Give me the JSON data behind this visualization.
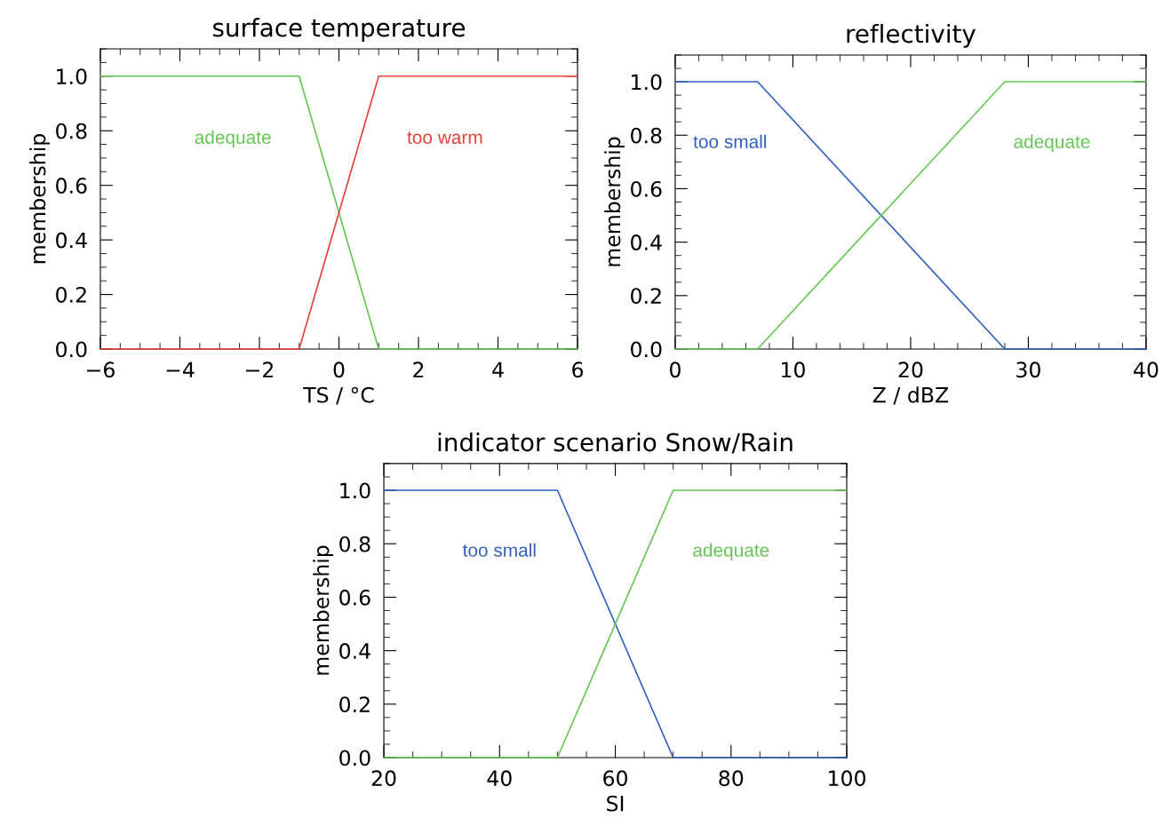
{
  "chart_data": [
    {
      "type": "line",
      "title": "surface temperature",
      "xlabel": "TS / °C",
      "ylabel": "membership",
      "xlim": [
        -6,
        6
      ],
      "xticks": [
        {
          "value": -6,
          "label": "−6"
        },
        {
          "value": -4,
          "label": "−4"
        },
        {
          "value": -2,
          "label": "−2"
        },
        0,
        2,
        4,
        6
      ],
      "ylim": [
        0,
        1.1
      ],
      "yticks": [
        {
          "value": 0,
          "label": "0.0"
        },
        {
          "value": 0.2,
          "label": "0.2"
        },
        {
          "value": 0.4,
          "label": "0.4"
        },
        {
          "value": 0.6,
          "label": "0.6"
        },
        {
          "value": 0.8,
          "label": "0.8"
        },
        {
          "value": 1,
          "label": "1.0"
        }
      ],
      "grid": false,
      "legend": false,
      "series": [
        {
          "name": "adequate",
          "color": "#66c655",
          "x": [
            -6,
            -1,
            1,
            6
          ],
          "values": [
            1,
            1,
            0,
            0
          ]
        },
        {
          "name": "too warm",
          "color": "#e8403c",
          "x": [
            -6,
            -1,
            1,
            6
          ],
          "values": [
            0,
            0,
            1,
            1
          ]
        }
      ]
    },
    {
      "type": "line",
      "title": "reflectivity",
      "xlabel": "Z / dBZ",
      "ylabel": "membership",
      "xlim": [
        0,
        40
      ],
      "xticks": [
        0,
        10,
        20,
        30,
        40
      ],
      "ylim": [
        0,
        1.1
      ],
      "yticks": [
        {
          "value": 0,
          "label": "0.0"
        },
        {
          "value": 0.2,
          "label": "0.2"
        },
        {
          "value": 0.4,
          "label": "0.4"
        },
        {
          "value": 0.6,
          "label": "0.6"
        },
        {
          "value": 0.8,
          "label": "0.8"
        },
        {
          "value": 1,
          "label": "1.0"
        }
      ],
      "grid": false,
      "legend": false,
      "series": [
        {
          "name": "too small",
          "color": "#3060c0",
          "x": [
            0,
            7,
            28,
            40
          ],
          "values": [
            1,
            1,
            0,
            0
          ]
        },
        {
          "name": "adequate",
          "color": "#66c655",
          "x": [
            0,
            7,
            28,
            40
          ],
          "values": [
            0,
            0,
            1,
            1
          ]
        }
      ]
    },
    {
      "type": "line",
      "title": "indicator scenario Snow/Rain",
      "xlabel": "SI",
      "ylabel": "membership",
      "xlim": [
        20,
        100
      ],
      "xticks": [
        20,
        40,
        60,
        80,
        100
      ],
      "ylim": [
        0,
        1.1
      ],
      "yticks": [
        {
          "value": 0,
          "label": "0.0"
        },
        {
          "value": 0.2,
          "label": "0.2"
        },
        {
          "value": 0.4,
          "label": "0.4"
        },
        {
          "value": 0.6,
          "label": "0.6"
        },
        {
          "value": 0.8,
          "label": "0.8"
        },
        {
          "value": 1,
          "label": "1.0"
        }
      ],
      "grid": false,
      "legend": false,
      "series": [
        {
          "name": "too small",
          "color": "#3060c0",
          "x": [
            20,
            50,
            70,
            100
          ],
          "values": [
            1,
            1,
            0,
            0
          ]
        },
        {
          "name": "adequate",
          "color": "#66c655",
          "x": [
            20,
            50,
            70,
            100
          ],
          "values": [
            0,
            0,
            1,
            1
          ]
        }
      ]
    }
  ]
}
